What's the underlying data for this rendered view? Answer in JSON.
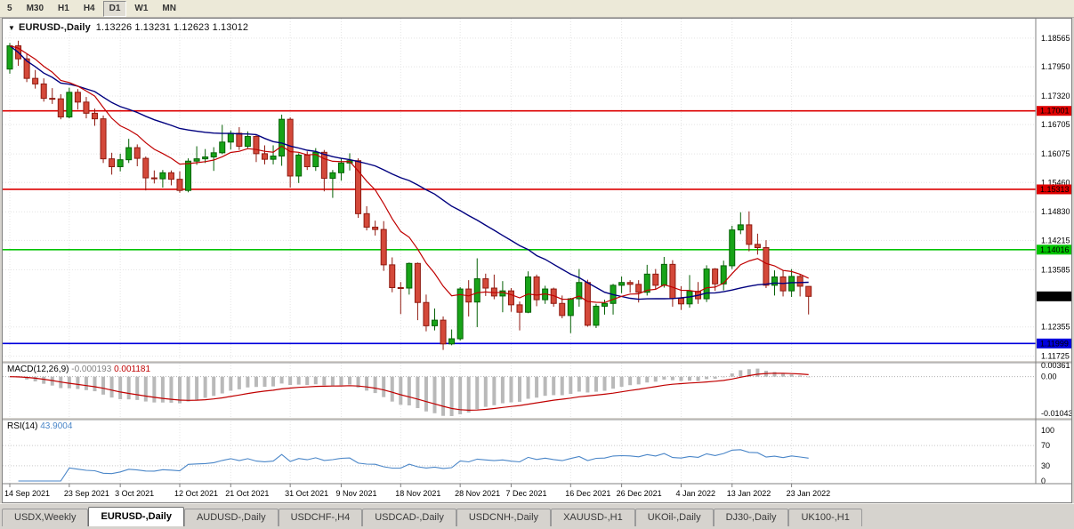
{
  "icons": {
    "chart_dropdown": "▼"
  },
  "toolbar": {
    "timeframes": [
      "5",
      "M30",
      "H1",
      "H4",
      "D1",
      "W1",
      "MN"
    ],
    "active_timeframe": "D1"
  },
  "chart": {
    "title_symbol": "EURUSD-,Daily",
    "ohlc_text": "1.13226 1.13231 1.12623 1.13012"
  },
  "chart_data": {
    "type": "candlestick",
    "symbol": "EURUSD-,Daily",
    "current_bar": {
      "open": 1.13226,
      "high": 1.13231,
      "low": 1.12623,
      "close": 1.13012
    },
    "current_price": 1.13012,
    "colors": {
      "bull": "#18a318",
      "bull_border": "#056105",
      "bear": "#d4493a",
      "bear_border": "#8f1a10",
      "ma_slow": "#00007f",
      "ma_fast": "#c00000",
      "macd_hist": "#b9b9b9",
      "macd_signal": "#c00000",
      "rsi": "#4a86c8",
      "current_tag": "#000000"
    },
    "price_ticks": [
      1.18565,
      1.1795,
      1.1732,
      1.16705,
      1.16075,
      1.1546,
      1.1483,
      1.14215,
      1.13585,
      1.12355,
      1.11725
    ],
    "hlines": [
      {
        "price": 1.17001,
        "color": "#dd0000"
      },
      {
        "price": 1.15313,
        "color": "#dd0000"
      },
      {
        "price": 1.14016,
        "color": "#00c300"
      },
      {
        "price": 1.11999,
        "color": "#0000dd"
      }
    ],
    "mas": [
      {
        "name": "slow-ma",
        "type": "sma",
        "period": 30,
        "color": "#00007f"
      },
      {
        "name": "fast-ma",
        "type": "ema",
        "period": 10,
        "color": "#c00000"
      }
    ],
    "macd": {
      "label": "MACD(12,26,9)",
      "main_value": "-0.000193",
      "signal_value": "0.001181",
      "params": [
        12,
        26,
        9
      ],
      "axis": [
        "0.00361",
        "0.00",
        "-0.01043"
      ],
      "scale_max": 0.0036,
      "scale_min": -0.0104
    },
    "rsi": {
      "label": "RSI(14)",
      "value": "43.9004",
      "period": 14,
      "levels": [
        100,
        70,
        30,
        0
      ],
      "dotted_levels": [
        70,
        30
      ]
    },
    "date_ticks": [
      {
        "i": 0,
        "label": "14 Sep 2021"
      },
      {
        "i": 7,
        "label": "23 Sep 2021"
      },
      {
        "i": 13,
        "label": "3 Oct 2021"
      },
      {
        "i": 20,
        "label": "12 Oct 2021"
      },
      {
        "i": 26,
        "label": "21 Oct 2021"
      },
      {
        "i": 33,
        "label": "31 Oct 2021"
      },
      {
        "i": 39,
        "label": "9 Nov 2021"
      },
      {
        "i": 46,
        "label": "18 Nov 2021"
      },
      {
        "i": 53,
        "label": "28 Nov 2021"
      },
      {
        "i": 59,
        "label": "7 Dec 2021"
      },
      {
        "i": 66,
        "label": "16 Dec 2021"
      },
      {
        "i": 72,
        "label": "26 Dec 2021"
      },
      {
        "i": 79,
        "label": "4 Jan 2022"
      },
      {
        "i": 85,
        "label": "13 Jan 2022"
      },
      {
        "i": 92,
        "label": "23 Jan 2022"
      }
    ],
    "candles": [
      [
        1.179,
        1.1846,
        1.178,
        1.184
      ],
      [
        1.184,
        1.1851,
        1.1797,
        1.1812
      ],
      [
        1.1812,
        1.1822,
        1.1762,
        1.177
      ],
      [
        1.177,
        1.1788,
        1.1748,
        1.1758
      ],
      [
        1.1758,
        1.177,
        1.172,
        1.1727
      ],
      [
        1.1727,
        1.1749,
        1.1715,
        1.1726
      ],
      [
        1.1726,
        1.1736,
        1.1682,
        1.1687
      ],
      [
        1.1687,
        1.175,
        1.1684,
        1.174
      ],
      [
        1.174,
        1.1747,
        1.1703,
        1.1719
      ],
      [
        1.1719,
        1.173,
        1.1684,
        1.1695
      ],
      [
        1.1695,
        1.1705,
        1.1668,
        1.1683
      ],
      [
        1.1683,
        1.169,
        1.1588,
        1.1597
      ],
      [
        1.1597,
        1.161,
        1.1563,
        1.158
      ],
      [
        1.158,
        1.1608,
        1.157,
        1.1595
      ],
      [
        1.1595,
        1.164,
        1.1588,
        1.1621
      ],
      [
        1.1621,
        1.1628,
        1.1581,
        1.1598
      ],
      [
        1.1598,
        1.1602,
        1.1529,
        1.1556
      ],
      [
        1.1556,
        1.1572,
        1.1544,
        1.1554
      ],
      [
        1.1554,
        1.1573,
        1.1535,
        1.1567
      ],
      [
        1.1567,
        1.1572,
        1.154,
        1.1553
      ],
      [
        1.1553,
        1.157,
        1.1524,
        1.1529
      ],
      [
        1.1529,
        1.1598,
        1.1525,
        1.1592
      ],
      [
        1.1592,
        1.1624,
        1.1584,
        1.1597
      ],
      [
        1.1597,
        1.1618,
        1.1588,
        1.1601
      ],
      [
        1.1601,
        1.1622,
        1.1571,
        1.161
      ],
      [
        1.161,
        1.167,
        1.1607,
        1.1633
      ],
      [
        1.1633,
        1.1658,
        1.1617,
        1.1652
      ],
      [
        1.1652,
        1.1665,
        1.1616,
        1.1624
      ],
      [
        1.1624,
        1.1656,
        1.162,
        1.1645
      ],
      [
        1.1645,
        1.165,
        1.159,
        1.1608
      ],
      [
        1.1608,
        1.1626,
        1.1585,
        1.1596
      ],
      [
        1.1596,
        1.1626,
        1.1585,
        1.1603
      ],
      [
        1.1603,
        1.1692,
        1.1582,
        1.1682
      ],
      [
        1.1682,
        1.1686,
        1.1535,
        1.156
      ],
      [
        1.156,
        1.1609,
        1.1545,
        1.1605
      ],
      [
        1.1605,
        1.1613,
        1.1573,
        1.158
      ],
      [
        1.158,
        1.162,
        1.1571,
        1.1611
      ],
      [
        1.1611,
        1.1616,
        1.1527,
        1.1555
      ],
      [
        1.1555,
        1.1573,
        1.1513,
        1.1567
      ],
      [
        1.1567,
        1.1598,
        1.155,
        1.1588
      ],
      [
        1.1588,
        1.1609,
        1.1572,
        1.1593
      ],
      [
        1.1593,
        1.1598,
        1.147,
        1.1479
      ],
      [
        1.1479,
        1.1495,
        1.1443,
        1.145
      ],
      [
        1.145,
        1.1464,
        1.1432,
        1.1445
      ],
      [
        1.1445,
        1.1463,
        1.1356,
        1.1369
      ],
      [
        1.1369,
        1.1385,
        1.131,
        1.132
      ],
      [
        1.132,
        1.1332,
        1.1263,
        1.1319
      ],
      [
        1.1319,
        1.1374,
        1.1305,
        1.1372
      ],
      [
        1.1372,
        1.1374,
        1.125,
        1.1288
      ],
      [
        1.1288,
        1.1305,
        1.1226,
        1.1238
      ],
      [
        1.1238,
        1.1275,
        1.1228,
        1.125
      ],
      [
        1.125,
        1.1258,
        1.1186,
        1.1199
      ],
      [
        1.1199,
        1.123,
        1.1196,
        1.121
      ],
      [
        1.121,
        1.1321,
        1.1206,
        1.1317
      ],
      [
        1.1317,
        1.1336,
        1.1258,
        1.1289
      ],
      [
        1.1289,
        1.1383,
        1.1235,
        1.1339
      ],
      [
        1.1339,
        1.135,
        1.1302,
        1.1319
      ],
      [
        1.1319,
        1.1348,
        1.1295,
        1.1302
      ],
      [
        1.1302,
        1.1334,
        1.1267,
        1.1313
      ],
      [
        1.1313,
        1.1319,
        1.1268,
        1.1283
      ],
      [
        1.1283,
        1.129,
        1.1228,
        1.1267
      ],
      [
        1.1267,
        1.1355,
        1.1265,
        1.1343
      ],
      [
        1.1343,
        1.1348,
        1.128,
        1.1294
      ],
      [
        1.1294,
        1.1324,
        1.1285,
        1.1317
      ],
      [
        1.1317,
        1.132,
        1.1279,
        1.1286
      ],
      [
        1.1286,
        1.1303,
        1.1254,
        1.126
      ],
      [
        1.126,
        1.1298,
        1.1222,
        1.1296
      ],
      [
        1.1296,
        1.136,
        1.1279,
        1.1331
      ],
      [
        1.1331,
        1.1337,
        1.1236,
        1.1239
      ],
      [
        1.1239,
        1.1285,
        1.1233,
        1.128
      ],
      [
        1.128,
        1.1294,
        1.1262,
        1.1286
      ],
      [
        1.1286,
        1.1328,
        1.1262,
        1.1325
      ],
      [
        1.1325,
        1.1344,
        1.1308,
        1.1331
      ],
      [
        1.1331,
        1.1336,
        1.1309,
        1.1327
      ],
      [
        1.1327,
        1.1336,
        1.1288,
        1.131
      ],
      [
        1.131,
        1.1369,
        1.1303,
        1.1349
      ],
      [
        1.1349,
        1.136,
        1.1316,
        1.1325
      ],
      [
        1.1325,
        1.1386,
        1.132,
        1.137
      ],
      [
        1.137,
        1.1379,
        1.1279,
        1.1297
      ],
      [
        1.1297,
        1.1323,
        1.1272,
        1.1285
      ],
      [
        1.1285,
        1.1347,
        1.1277,
        1.1312
      ],
      [
        1.1312,
        1.1332,
        1.1285,
        1.1296
      ],
      [
        1.1296,
        1.1368,
        1.1289,
        1.136
      ],
      [
        1.136,
        1.1362,
        1.1313,
        1.1328
      ],
      [
        1.1328,
        1.1378,
        1.1314,
        1.1367
      ],
      [
        1.1367,
        1.1453,
        1.136,
        1.1444
      ],
      [
        1.1444,
        1.1482,
        1.1435,
        1.1455
      ],
      [
        1.1455,
        1.1484,
        1.1398,
        1.1413
      ],
      [
        1.1413,
        1.1436,
        1.1391,
        1.1406
      ],
      [
        1.1406,
        1.1422,
        1.1319,
        1.1325
      ],
      [
        1.1325,
        1.1357,
        1.1303,
        1.1343
      ],
      [
        1.1343,
        1.1358,
        1.1301,
        1.1313
      ],
      [
        1.1313,
        1.136,
        1.13,
        1.1344
      ],
      [
        1.1344,
        1.1349,
        1.1301,
        1.1323
      ],
      [
        1.13226,
        1.13231,
        1.12623,
        1.13012
      ]
    ]
  },
  "tabs": {
    "items": [
      "USDX,Weekly",
      "EURUSD-,Daily",
      "AUDUSD-,Daily",
      "USDCHF-,H4",
      "USDCAD-,Daily",
      "USDCNH-,Daily",
      "XAUUSD-,H1",
      "UKOil-,Daily",
      "DJ30-,Daily",
      "UK100-,H1"
    ],
    "active": "EURUSD-,Daily"
  }
}
